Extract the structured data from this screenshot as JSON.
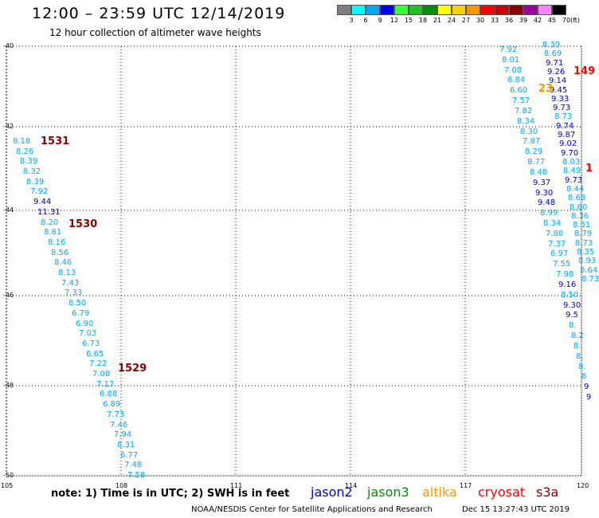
{
  "title": "12:00 – 23:59 UTC 12/14/2019",
  "subtitle": "12 hour collection of altimeter wave heights",
  "legend": {
    "unit": "(ft)",
    "labels": [
      "3",
      "6",
      "9",
      "12",
      "15",
      "18",
      "21",
      "24",
      "27",
      "30",
      "33",
      "36",
      "39",
      "42",
      "45",
      "70"
    ],
    "colors": [
      "#7f7f7f",
      "#00ffff",
      "#00a8ff",
      "#0000ff",
      "#33ff33",
      "#1fc01f",
      "#008f00",
      "#ffff00",
      "#ffd000",
      "#ff9600",
      "#ff0000",
      "#c80000",
      "#8b0000",
      "#a000a0",
      "#ff80ff",
      "#000000"
    ]
  },
  "axes": {
    "lat_labels": [
      "-40",
      "-42",
      "-44",
      "-46",
      "-48",
      "-50"
    ],
    "lon_labels": [
      "105",
      "108",
      "111",
      "114",
      "117",
      "120"
    ]
  },
  "annotations": {
    "tracks": [
      "1531",
      "1530",
      "1529",
      "149",
      "23",
      "1"
    ]
  },
  "tracks": {
    "left": [
      {
        "v": "8.18",
        "c": "#00a8ff"
      },
      {
        "v": "8.26",
        "c": "#00a8ff"
      },
      {
        "v": "8.39",
        "c": "#00a8ff"
      },
      {
        "v": "8.32",
        "c": "#00a8ff"
      },
      {
        "v": "8.39",
        "c": "#00a8ff"
      },
      {
        "v": "7.92",
        "c": "#00a8ff"
      },
      {
        "v": "9.44",
        "c": "#000080"
      },
      {
        "v": "11.31",
        "c": "#000080"
      },
      {
        "v": "8.20",
        "c": "#00a8ff"
      },
      {
        "v": "8.81",
        "c": "#00a8ff"
      },
      {
        "v": "8.16",
        "c": "#00a8ff"
      },
      {
        "v": "8.56",
        "c": "#00a8ff"
      },
      {
        "v": "8.46",
        "c": "#00a8ff"
      },
      {
        "v": "8.13",
        "c": "#00a8ff"
      },
      {
        "v": "7.43",
        "c": "#00a8ff"
      },
      {
        "v": "7.33",
        "c": "#00a8ff"
      },
      {
        "v": "8.50",
        "c": "#00a8ff"
      },
      {
        "v": "6.79",
        "c": "#00a8ff"
      },
      {
        "v": "6.90",
        "c": "#00a8ff"
      },
      {
        "v": "7.03",
        "c": "#00a8ff"
      },
      {
        "v": "6.73",
        "c": "#00a8ff"
      },
      {
        "v": "6.65",
        "c": "#00a8ff"
      },
      {
        "v": "7.22",
        "c": "#00a8ff"
      },
      {
        "v": "7.08",
        "c": "#00a8ff"
      },
      {
        "v": "7.17",
        "c": "#00a8ff"
      },
      {
        "v": "6.88",
        "c": "#00a8ff"
      },
      {
        "v": "6.89",
        "c": "#00a8ff"
      },
      {
        "v": "7.73",
        "c": "#00a8ff"
      },
      {
        "v": "7.46",
        "c": "#00a8ff"
      },
      {
        "v": "7.94",
        "c": "#00a8ff"
      },
      {
        "v": "8.31",
        "c": "#00a8ff"
      },
      {
        "v": "6.77",
        "c": "#00a8ff"
      },
      {
        "v": "7.48",
        "c": "#00a8ff"
      },
      {
        "v": "7.58",
        "c": "#00a8ff"
      }
    ],
    "right_a": [
      {
        "v": "7.92",
        "c": "#00a8ff"
      },
      {
        "v": "8.01",
        "c": "#00a8ff"
      },
      {
        "v": "7.08",
        "c": "#00a8ff"
      },
      {
        "v": "6.84",
        "c": "#00a8ff"
      },
      {
        "v": "6.60",
        "c": "#00a8ff"
      },
      {
        "v": "7.57",
        "c": "#00a8ff"
      },
      {
        "v": "7.82",
        "c": "#00a8ff"
      },
      {
        "v": "8.34",
        "c": "#00a8ff"
      },
      {
        "v": "8.30",
        "c": "#00a8ff"
      },
      {
        "v": "7.87",
        "c": "#00a8ff"
      },
      {
        "v": "8.29",
        "c": "#00a8ff"
      },
      {
        "v": "8.77",
        "c": "#00a8ff"
      },
      {
        "v": "8.48",
        "c": "#00a8ff"
      },
      {
        "v": "9.37",
        "c": "#0000cc"
      },
      {
        "v": "9.30",
        "c": "#0000cc"
      },
      {
        "v": "9.48",
        "c": "#0000cc"
      },
      {
        "v": "8.99",
        "c": "#00a8ff"
      },
      {
        "v": "8.34",
        "c": "#00a8ff"
      },
      {
        "v": "7.88",
        "c": "#00a8ff"
      },
      {
        "v": "7.37",
        "c": "#00a8ff"
      },
      {
        "v": "6.97",
        "c": "#00a8ff"
      },
      {
        "v": "7.55",
        "c": "#00a8ff"
      },
      {
        "v": "7.98",
        "c": "#00a8ff"
      },
      {
        "v": "9.16",
        "c": "#0000cc"
      },
      {
        "v": "8.50",
        "c": "#00a8ff"
      },
      {
        "v": "9.30",
        "c": "#0000cc"
      },
      {
        "v": "9.5",
        "c": "#0000cc"
      },
      {
        "v": "8.",
        "c": "#00a8ff"
      },
      {
        "v": "8.2",
        "c": "#00a8ff"
      },
      {
        "v": "8.",
        "c": "#00a8ff"
      },
      {
        "v": "8.",
        "c": "#00a8ff"
      },
      {
        "v": "8.",
        "c": "#00a8ff"
      },
      {
        "v": "8",
        "c": "#00a8ff"
      },
      {
        "v": "9",
        "c": "#0000cc"
      },
      {
        "v": "9",
        "c": "#0000cc"
      }
    ],
    "right_b": [
      {
        "v": "8.39",
        "c": "#00a8ff"
      },
      {
        "v": "8.69",
        "c": "#00a8ff"
      },
      {
        "v": "9.71",
        "c": "#0000cc"
      },
      {
        "v": "9.26",
        "c": "#0000cc"
      },
      {
        "v": "9.14",
        "c": "#0000cc"
      },
      {
        "v": "9.45",
        "c": "#000080"
      },
      {
        "v": "9.33",
        "c": "#0000cc"
      },
      {
        "v": "9.73",
        "c": "#0000cc"
      },
      {
        "v": "8.73",
        "c": "#00a8ff"
      },
      {
        "v": "9.74",
        "c": "#0000cc"
      },
      {
        "v": "9.87",
        "c": "#0000cc"
      },
      {
        "v": "9.02",
        "c": "#0000cc"
      },
      {
        "v": "9.70",
        "c": "#0000cc"
      },
      {
        "v": "8.03",
        "c": "#00a8ff"
      },
      {
        "v": "8.49",
        "c": "#00a8ff"
      },
      {
        "v": "9.73",
        "c": "#0000cc"
      },
      {
        "v": "8.44",
        "c": "#00a8ff"
      },
      {
        "v": "8.68",
        "c": "#00a8ff"
      },
      {
        "v": "8.60",
        "c": "#00a8ff"
      },
      {
        "v": "8.36",
        "c": "#00a8ff"
      },
      {
        "v": "8.51",
        "c": "#00a8ff"
      },
      {
        "v": "8.79",
        "c": "#00a8ff"
      },
      {
        "v": "8.73",
        "c": "#00a8ff"
      },
      {
        "v": "8.35",
        "c": "#00a8ff"
      },
      {
        "v": "8.93",
        "c": "#00a8ff"
      },
      {
        "v": "8.64",
        "c": "#00a8ff"
      },
      {
        "v": "8.73",
        "c": "#00a8ff"
      }
    ]
  },
  "note": "note:  1) Time is in UTC;  2) SWH is in feet",
  "satellites": [
    {
      "name": "jason2",
      "color": "#0000cc"
    },
    {
      "name": "jason3",
      "color": "#008f00"
    },
    {
      "name": "altika",
      "color": "#ff9600"
    },
    {
      "name": "cryosat",
      "color": "#ff0000"
    },
    {
      "name": "s3a",
      "color": "#8b0000"
    }
  ],
  "credit": "NOAA/NESDIS Center for Satellite Applications and Research",
  "timestamp": "Dec 15 13:27:43 UTC 2019"
}
